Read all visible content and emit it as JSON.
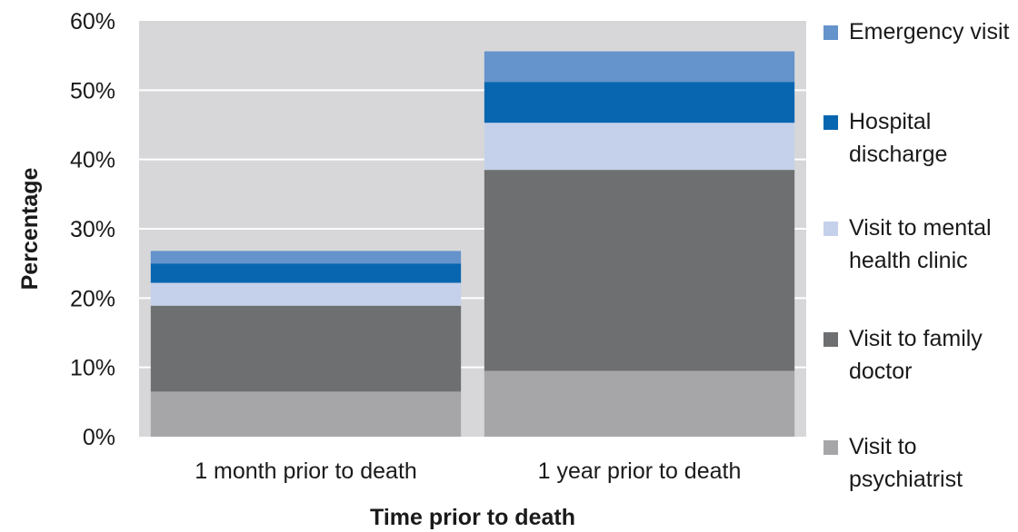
{
  "chart_data": {
    "type": "bar",
    "stacked": true,
    "categories": [
      "1 month prior to death",
      "1 year prior to death"
    ],
    "series": [
      {
        "name": "Visit to psychiatrist",
        "color": "#a6a6a8",
        "values": [
          6.5,
          9.5
        ]
      },
      {
        "name": "Visit to family doctor",
        "color": "#6e6f71",
        "values": [
          12.4,
          29.0
        ]
      },
      {
        "name": "Visit to mental health clinic",
        "color": "#c5d1ea",
        "values": [
          3.3,
          6.8
        ]
      },
      {
        "name": "Hospital discharge",
        "color": "#0866b0",
        "values": [
          2.8,
          5.9
        ]
      },
      {
        "name": "Emergency visit",
        "color": "#6593cb",
        "values": [
          1.8,
          4.4
        ]
      }
    ],
    "title": "",
    "xlabel": "Time prior to death",
    "ylabel": "Percentage",
    "ylim": [
      0,
      60
    ],
    "yticks": [
      "0%",
      "10%",
      "20%",
      "30%",
      "40%",
      "50%",
      "60%"
    ],
    "grid": true,
    "legend_position": "right"
  }
}
